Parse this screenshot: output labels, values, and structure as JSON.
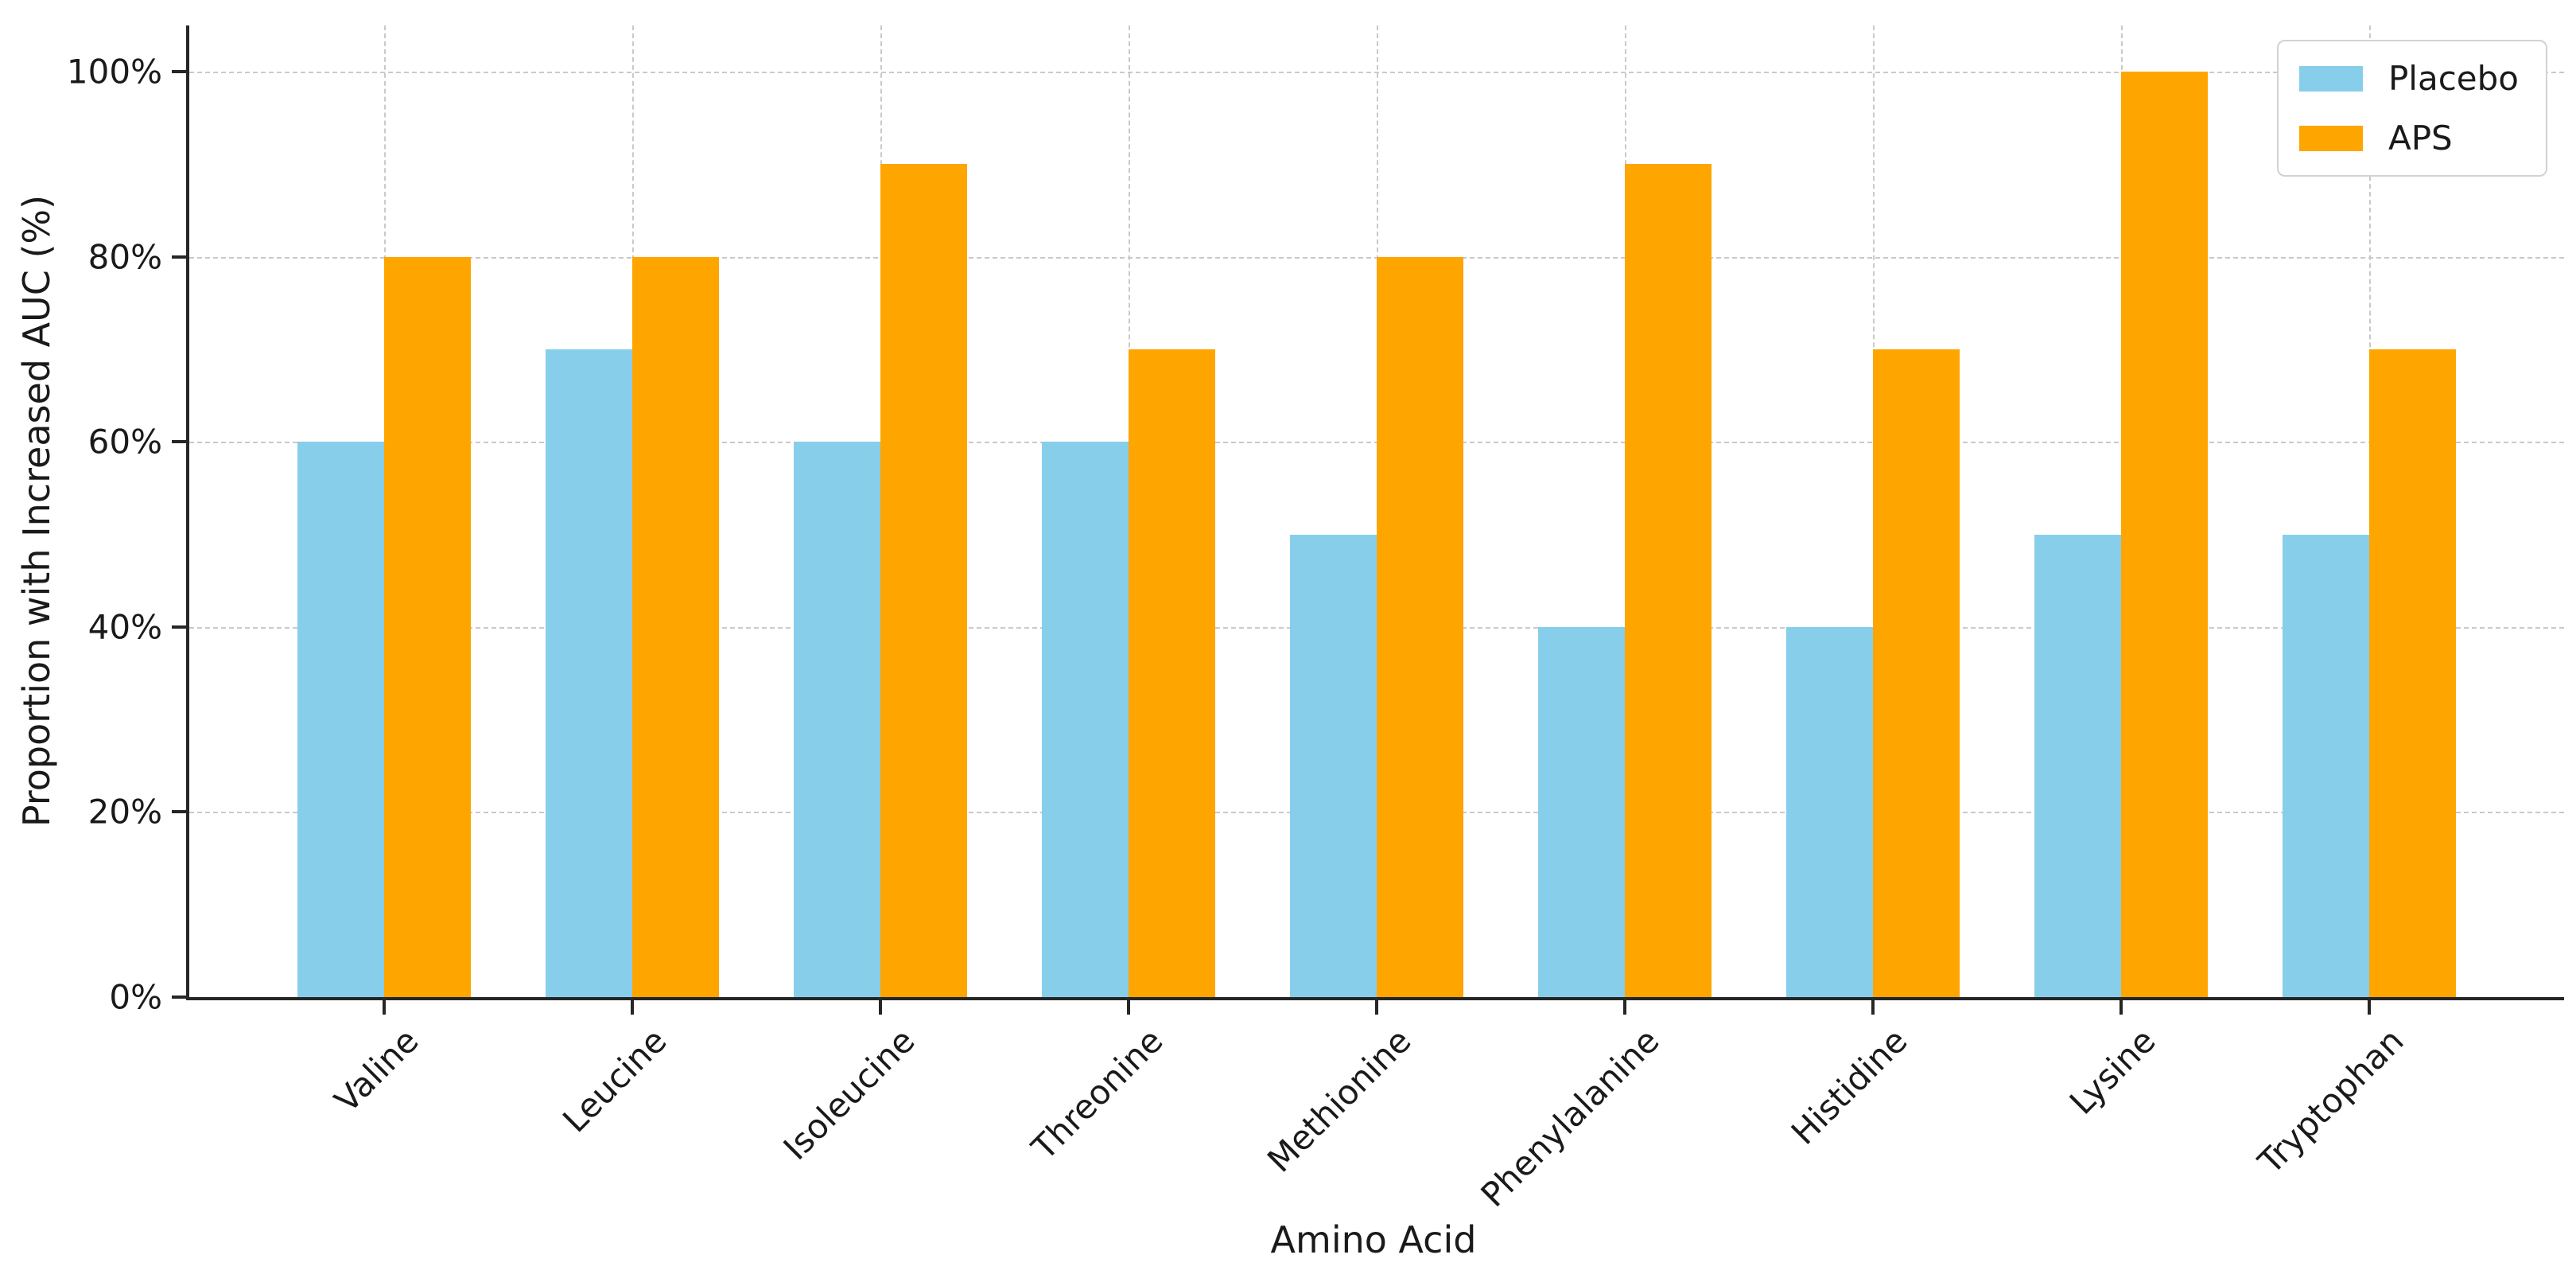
{
  "chart_data": {
    "type": "bar",
    "title": "",
    "xlabel": "Amino Acid",
    "ylabel": "Proportion with Increased AUC (%)",
    "categories": [
      "Valine",
      "Leucine",
      "Isoleucine",
      "Threonine",
      "Methionine",
      "Phenylalanine",
      "Histidine",
      "Lysine",
      "Tryptophan"
    ],
    "series": [
      {
        "name": "Placebo",
        "color": "#87CEEB",
        "values": [
          60,
          70,
          60,
          60,
          50,
          40,
          40,
          50,
          50
        ]
      },
      {
        "name": "APS",
        "color": "#FFA500",
        "values": [
          80,
          80,
          90,
          70,
          80,
          90,
          70,
          100,
          70
        ]
      }
    ],
    "y_tick_values": [
      0,
      20,
      40,
      60,
      80,
      100
    ],
    "y_tick_labels": [
      "0%",
      "20%",
      "40%",
      "60%",
      "80%",
      "100%"
    ],
    "ylim": [
      0,
      105
    ],
    "grid": "dashed",
    "legend_position": "upper right",
    "colors": {
      "axis": "#262626",
      "grid": "#c9c9c9",
      "text": "#1a1a1a",
      "background": "#ffffff"
    }
  }
}
